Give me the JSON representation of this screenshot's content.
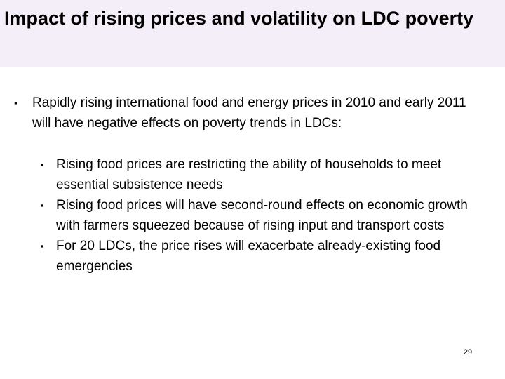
{
  "slide": {
    "title": "Impact of rising prices and volatility on LDC poverty",
    "bullet_marker": "▪",
    "main_bullet": "Rapidly rising international food and energy prices in 2010 and early 2011 will have negative effects on poverty trends in LDCs:",
    "sub_bullets": [
      "Rising food prices are restricting the ability of households to meet essential subsistence needs",
      "Rising food prices will have second-round effects on economic growth with farmers squeezed because of rising input and transport costs",
      "For 20 LDCs, the price rises will exacerbate already-existing food emergencies"
    ],
    "page_number": "29"
  }
}
